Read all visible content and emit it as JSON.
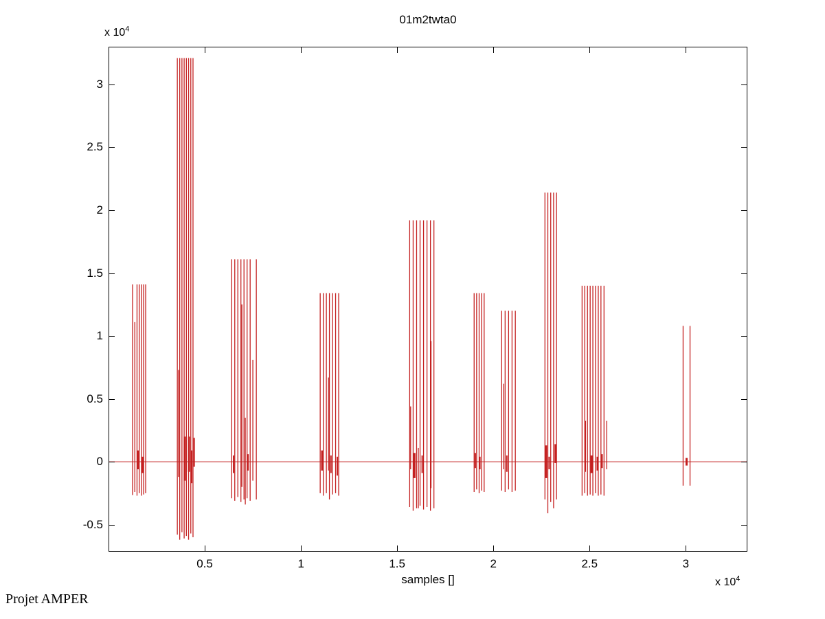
{
  "figure": {
    "footer": "Projet AMPER"
  },
  "chart_data": {
    "type": "line",
    "subtype": "pulse-train-waveform",
    "title": "01m2twta0",
    "xlabel": "samples []",
    "ylabel": "",
    "x_scale_prefix": "x 10",
    "x_scale_exponent": "4",
    "y_scale_prefix": "x 10",
    "y_scale_exponent": "4",
    "xlim": [
      0,
      33200
    ],
    "ylim": [
      -7150,
      33000
    ],
    "grid": false,
    "legend": "none",
    "box": true,
    "tick_direction": "in",
    "line_color": "#c42020",
    "axis_color": "#000000",
    "background_color": "#ffffff",
    "zero_line_y": 0,
    "xticks": {
      "values": [
        5000,
        10000,
        15000,
        20000,
        25000,
        30000
      ],
      "labels": [
        "0.5",
        "1",
        "1.5",
        "2",
        "2.5",
        "3"
      ]
    },
    "yticks": {
      "values": [
        -5000,
        0,
        5000,
        10000,
        15000,
        20000,
        25000,
        30000
      ],
      "labels": [
        "-0.5",
        "0",
        "0.5",
        "1",
        "1.5",
        "2",
        "2.5",
        "3"
      ]
    },
    "segments_format": "[x_sample, y_min, y_max, stroke_width(optional)]",
    "clusters": [
      {
        "name": "burst-1",
        "segments": [
          [
            1250,
            -2650,
            14100
          ],
          [
            1365,
            -2400,
            11100
          ],
          [
            1480,
            -2700,
            14100
          ],
          [
            1595,
            -2500,
            14100
          ],
          [
            1710,
            -2700,
            14100
          ],
          [
            1825,
            -2600,
            14100
          ],
          [
            1930,
            -2500,
            14100
          ],
          [
            1540,
            -600,
            900,
            3
          ],
          [
            1770,
            -900,
            400,
            2
          ]
        ]
      },
      {
        "name": "burst-2",
        "segments": [
          [
            3575,
            -5800,
            32100
          ],
          [
            3700,
            -6200,
            32100
          ],
          [
            3815,
            -5600,
            32100
          ],
          [
            3930,
            -6100,
            32100
          ],
          [
            4045,
            -5900,
            32100
          ],
          [
            4160,
            -6200,
            32100
          ],
          [
            4275,
            -5700,
            32100
          ],
          [
            4390,
            -6000,
            32100
          ],
          [
            3640,
            -1200,
            7300
          ],
          [
            3960,
            -1500,
            2000,
            3
          ],
          [
            4180,
            -800,
            2000,
            3
          ],
          [
            4320,
            -1700,
            900,
            2
          ],
          [
            4450,
            -400,
            1900,
            2
          ]
        ]
      },
      {
        "name": "burst-3",
        "segments": [
          [
            6400,
            -2900,
            16100
          ],
          [
            6560,
            -3100,
            16100
          ],
          [
            6720,
            -2800,
            16100
          ],
          [
            6880,
            -3200,
            16100
          ],
          [
            7040,
            -3000,
            16100
          ],
          [
            7200,
            -2900,
            16100
          ],
          [
            7360,
            -3100,
            16100
          ],
          [
            7680,
            -3000,
            16100
          ],
          [
            6930,
            -2000,
            12500
          ],
          [
            7107,
            -3400,
            3500
          ],
          [
            7500,
            -1500,
            8100
          ],
          [
            6500,
            -900,
            500,
            2
          ],
          [
            7250,
            -700,
            600,
            2
          ]
        ]
      },
      {
        "name": "burst-4",
        "segments": [
          [
            11000,
            -2500,
            13400
          ],
          [
            11160,
            -2700,
            13400
          ],
          [
            11320,
            -2500,
            13400
          ],
          [
            11480,
            -3000,
            13400
          ],
          [
            11640,
            -2600,
            13400
          ],
          [
            11800,
            -2500,
            13400
          ],
          [
            11960,
            -2700,
            13400
          ],
          [
            11430,
            -700,
            6700
          ],
          [
            11100,
            -700,
            900,
            3
          ],
          [
            11560,
            -900,
            500,
            2
          ],
          [
            11890,
            -1100,
            400,
            2
          ]
        ]
      },
      {
        "name": "burst-5",
        "segments": [
          [
            15650,
            -3600,
            19200
          ],
          [
            15830,
            -3900,
            19200
          ],
          [
            16010,
            -3700,
            19200
          ],
          [
            16190,
            -3500,
            19200
          ],
          [
            16370,
            -3800,
            19200
          ],
          [
            16550,
            -3600,
            19200
          ],
          [
            16730,
            -3900,
            19200
          ],
          [
            16910,
            -3700,
            19200
          ],
          [
            15700,
            -600,
            4400
          ],
          [
            16760,
            -2100,
            9600
          ],
          [
            16100,
            -3700,
            1100
          ],
          [
            15900,
            -1300,
            700,
            3
          ],
          [
            16300,
            -900,
            500,
            2
          ]
        ]
      },
      {
        "name": "burst-6",
        "segments": [
          [
            19000,
            -2400,
            13400
          ],
          [
            19130,
            -2200,
            13400
          ],
          [
            19260,
            -2500,
            13400
          ],
          [
            19390,
            -2300,
            13400
          ],
          [
            19520,
            -2400,
            13400
          ],
          [
            19060,
            -500,
            700,
            2
          ],
          [
            19300,
            -600,
            400,
            2
          ]
        ]
      },
      {
        "name": "burst-7",
        "segments": [
          [
            20430,
            -2300,
            12000
          ],
          [
            20610,
            -2400,
            12000
          ],
          [
            20790,
            -2200,
            12000
          ],
          [
            20970,
            -2400,
            12000
          ],
          [
            21140,
            -2300,
            12000
          ],
          [
            20540,
            -600,
            6200
          ],
          [
            20700,
            -800,
            500,
            2
          ]
        ]
      },
      {
        "name": "burst-8",
        "segments": [
          [
            22680,
            -3000,
            21400
          ],
          [
            22830,
            -4100,
            21400
          ],
          [
            22980,
            -3200,
            21400
          ],
          [
            23130,
            -3700,
            21400
          ],
          [
            23280,
            -3000,
            21400
          ],
          [
            22740,
            -1300,
            1300,
            3
          ],
          [
            23230,
            -100,
            1400,
            3
          ],
          [
            22900,
            -600,
            400,
            2
          ]
        ]
      },
      {
        "name": "burst-9",
        "segments": [
          [
            24610,
            -2700,
            14000
          ],
          [
            24750,
            -2500,
            14000
          ],
          [
            24890,
            -2700,
            14000
          ],
          [
            25030,
            -2600,
            14000
          ],
          [
            25170,
            -2700,
            14000
          ],
          [
            25310,
            -2500,
            14000
          ],
          [
            25450,
            -2700,
            14000
          ],
          [
            25590,
            -2600,
            14000
          ],
          [
            25750,
            -2700,
            14000
          ],
          [
            24790,
            -800,
            3250
          ],
          [
            25893,
            -600,
            3250
          ],
          [
            25100,
            -900,
            500,
            3
          ],
          [
            25400,
            -700,
            400,
            2
          ],
          [
            25650,
            -500,
            600,
            2
          ]
        ]
      },
      {
        "name": "burst-10",
        "segments": [
          [
            29860,
            -1900,
            10800
          ],
          [
            30220,
            -1900,
            10800
          ],
          [
            30040,
            -300,
            300,
            3
          ]
        ]
      }
    ]
  }
}
